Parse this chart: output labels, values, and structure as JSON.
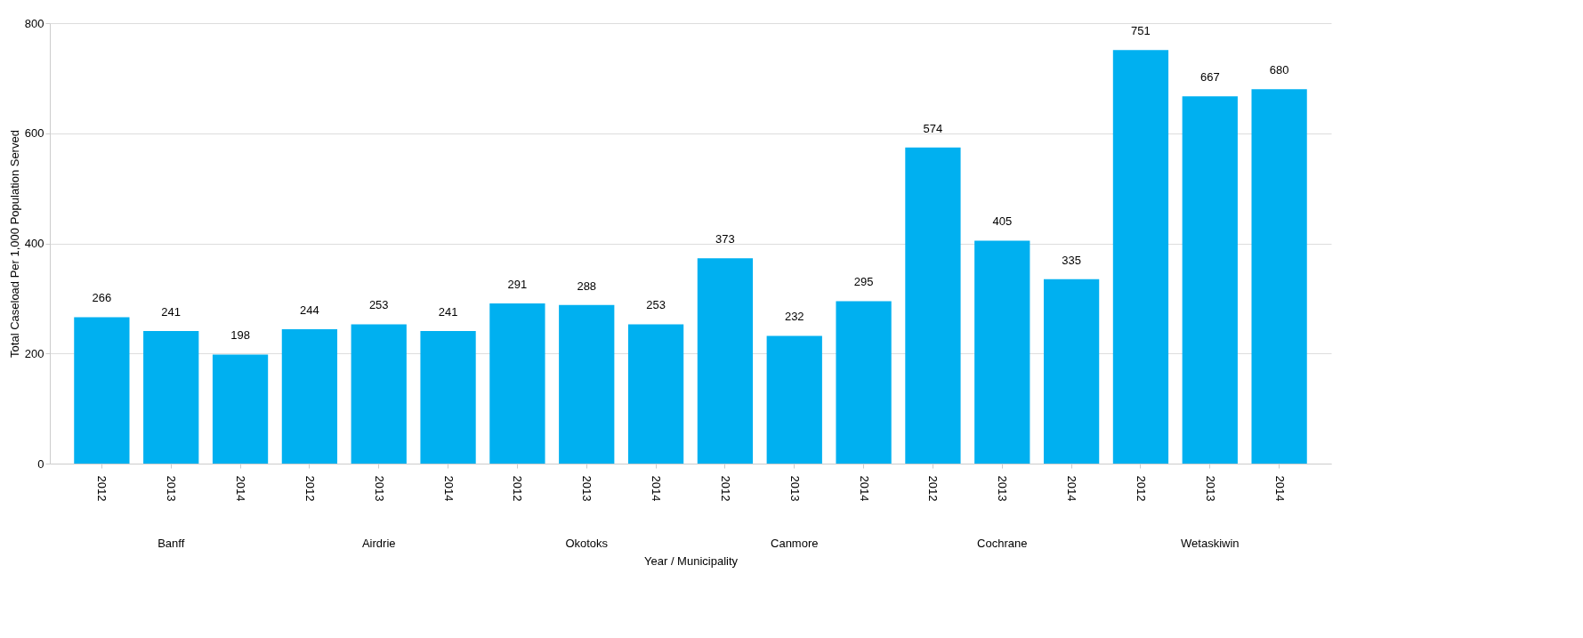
{
  "chart_data": {
    "type": "bar",
    "xlabel": "Year / Municipality",
    "ylabel": "Total Caseload Per 1,000 Population Served",
    "categories": [
      "2012",
      "2013",
      "2014",
      "2012",
      "2013",
      "2014",
      "2012",
      "2013",
      "2014",
      "2012",
      "2013",
      "2014",
      "2012",
      "2013",
      "2014",
      "2012",
      "2013",
      "2014"
    ],
    "values": [
      266,
      241,
      198,
      244,
      253,
      241,
      291,
      288,
      253,
      373,
      232,
      295,
      574,
      405,
      335,
      751,
      667,
      680
    ],
    "color": "#00b0f0",
    "ylim": [
      0,
      800
    ],
    "yticks": [
      0,
      200,
      400,
      600,
      800
    ],
    "grid": "y",
    "data_labels": true,
    "annotations": [
      "Banff",
      "Airdrie",
      "Okotoks",
      "Canmore",
      "Cochrane",
      "Wetaskiwin"
    ]
  }
}
